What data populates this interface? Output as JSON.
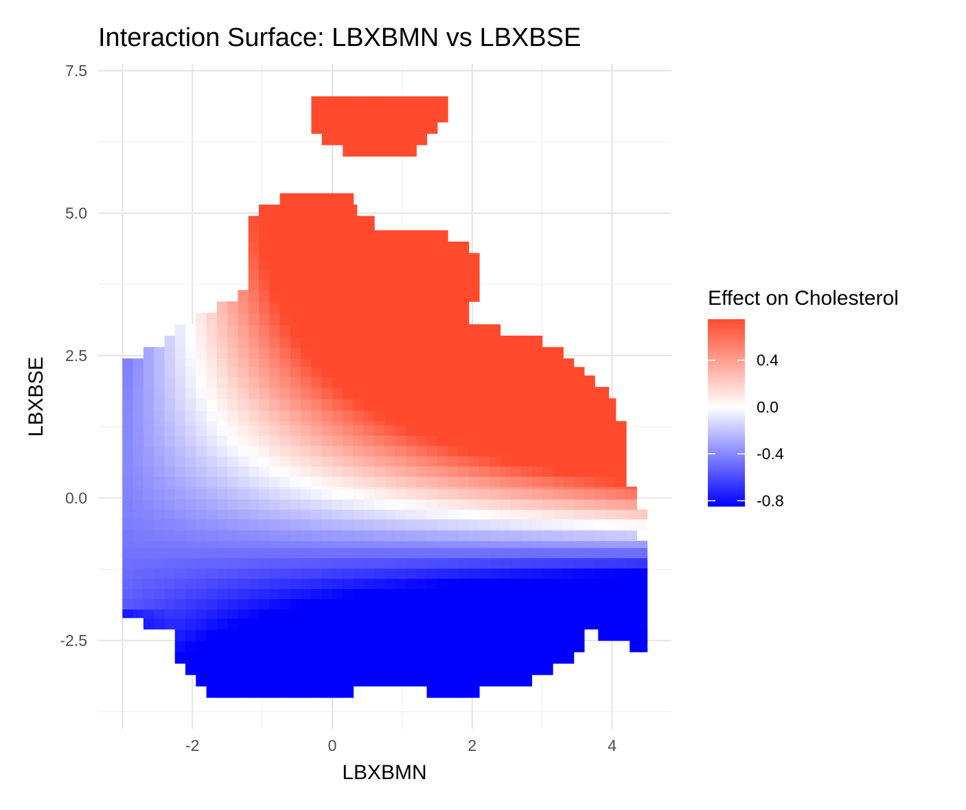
{
  "chart_data": {
    "type": "heatmap",
    "title": "Interaction Surface: LBXBMN vs LBXBSE",
    "xlabel": "LBXBMN",
    "ylabel": "LBXBSE",
    "xlim": [
      -3.2,
      4.75
    ],
    "ylim": [
      -3.75,
      7.5
    ],
    "x_ticks": [
      -2,
      0,
      2,
      4
    ],
    "x_tick_labels": [
      "-2",
      "0",
      "2",
      "4"
    ],
    "y_ticks": [
      -2.5,
      0.0,
      2.5,
      5.0,
      7.5
    ],
    "y_tick_labels": [
      "-2.5",
      "0.0",
      "2.5",
      "5.0",
      "7.5"
    ],
    "legend": {
      "title": "Effect on Cholesterol",
      "placement": "right",
      "range": [
        -0.85,
        0.75
      ],
      "ticks": [
        0.4,
        0.0,
        -0.4,
        -0.8
      ],
      "tick_labels": [
        "0.4",
        "0.0",
        "-0.4",
        "-0.8"
      ],
      "low_color": "#0000ff",
      "mid_color": "#ffffff",
      "high_color": "#ff4a2e"
    },
    "grid": true,
    "grid_step": {
      "x": 0.15,
      "y": 0.18
    },
    "surface_model": "effect = 0.62*y*(x+1.4)/5.4*1.15 + (0.25*x+0.48*y-0.1)*0.5 + (-0.06*y*y)*0.3",
    "regions": [
      {
        "name": "lower",
        "x_range": [
          -3.0,
          4.5
        ],
        "rows": [
          {
            "y": [
              -3.5,
              -3.3
            ],
            "x": [
              [
                -1.8,
                0.3
              ],
              [
                1.35,
                2.1
              ]
            ]
          },
          {
            "y": [
              -3.3,
              -3.1
            ],
            "x": [
              [
                -1.95,
                0.6
              ],
              [
                0.6,
                2.85
              ]
            ]
          },
          {
            "y": [
              -3.1,
              -2.9
            ],
            "x": [
              [
                -2.1,
                3.15
              ]
            ]
          },
          {
            "y": [
              -2.9,
              -2.7
            ],
            "x": [
              [
                -2.25,
                3.45
              ]
            ]
          },
          {
            "y": [
              -2.7,
              -2.5
            ],
            "x": [
              [
                -2.25,
                3.6
              ],
              [
                4.25,
                4.5
              ]
            ]
          },
          {
            "y": [
              -2.5,
              -2.3
            ],
            "x": [
              [
                -2.25,
                3.6
              ],
              [
                3.8,
                4.5
              ]
            ]
          },
          {
            "y": [
              -2.3,
              -2.1
            ],
            "x": [
              [
                -2.7,
                4.5
              ]
            ]
          },
          {
            "y": [
              -2.1,
              -1.95
            ],
            "x": [
              [
                -3.0,
                4.5
              ]
            ]
          },
          {
            "y": [
              -1.95,
              -0.75
            ],
            "x": [
              [
                -3.0,
                4.5
              ]
            ]
          },
          {
            "y": [
              -0.75,
              -0.55
            ],
            "x": [
              [
                -3.0,
                4.35
              ]
            ]
          },
          {
            "y": [
              -0.55,
              -0.2
            ],
            "x": [
              [
                -3.0,
                4.5
              ]
            ]
          },
          {
            "y": [
              -0.2,
              0.2
            ],
            "x": [
              [
                -3.0,
                4.35
              ]
            ]
          },
          {
            "y": [
              0.2,
              1.35
            ],
            "x": [
              [
                -3.0,
                4.2
              ]
            ]
          },
          {
            "y": [
              1.35,
              1.55
            ],
            "x": [
              [
                -3.0,
                4.05
              ]
            ]
          },
          {
            "y": [
              1.55,
              1.75
            ],
            "x": [
              [
                -3.0,
                4.05
              ]
            ]
          },
          {
            "y": [
              1.75,
              1.95
            ],
            "x": [
              [
                -3.0,
                3.95
              ]
            ]
          },
          {
            "y": [
              1.95,
              2.15
            ],
            "x": [
              [
                -3.0,
                3.75
              ]
            ]
          },
          {
            "y": [
              2.15,
              2.3
            ],
            "x": [
              [
                -3.0,
                3.6
              ]
            ]
          },
          {
            "y": [
              2.3,
              2.45
            ],
            "x": [
              [
                -3.0,
                3.45
              ]
            ]
          },
          {
            "y": [
              2.45,
              2.65
            ],
            "x": [
              [
                -2.7,
                3.3
              ]
            ]
          },
          {
            "y": [
              2.65,
              2.85
            ],
            "x": [
              [
                -2.4,
                3.0
              ]
            ]
          },
          {
            "y": [
              2.85,
              3.05
            ],
            "x": [
              [
                -2.25,
                2.4
              ]
            ]
          },
          {
            "y": [
              3.05,
              3.25
            ],
            "x": [
              [
                -1.95,
                1.95
              ]
            ]
          },
          {
            "y": [
              3.25,
              3.45
            ],
            "x": [
              [
                -1.65,
                1.95
              ]
            ]
          },
          {
            "y": [
              3.45,
              3.65
            ],
            "x": [
              [
                -1.35,
                2.1
              ]
            ]
          },
          {
            "y": [
              3.65,
              4.3
            ],
            "x": [
              [
                -1.2,
                2.1
              ]
            ]
          },
          {
            "y": [
              4.3,
              4.5
            ],
            "x": [
              [
                -1.2,
                1.95
              ]
            ]
          },
          {
            "y": [
              4.5,
              4.7
            ],
            "x": [
              [
                -1.2,
                1.65
              ]
            ]
          },
          {
            "y": [
              4.7,
              4.95
            ],
            "x": [
              [
                -1.2,
                0.6
              ]
            ]
          },
          {
            "y": [
              4.95,
              5.15
            ],
            "x": [
              [
                -1.05,
                0.35
              ]
            ]
          },
          {
            "y": [
              5.15,
              5.35
            ],
            "x": [
              [
                -0.75,
                0.3
              ]
            ]
          }
        ]
      },
      {
        "name": "upper",
        "rows": [
          {
            "y": [
              6.0,
              6.2
            ],
            "x": [
              [
                0.15,
                1.2
              ]
            ]
          },
          {
            "y": [
              6.2,
              6.4
            ],
            "x": [
              [
                -0.15,
                1.35
              ]
            ]
          },
          {
            "y": [
              6.4,
              6.6
            ],
            "x": [
              [
                -0.3,
                1.5
              ]
            ]
          },
          {
            "y": [
              6.6,
              7.05
            ],
            "x": [
              [
                -0.3,
                1.65
              ]
            ]
          }
        ]
      }
    ]
  }
}
